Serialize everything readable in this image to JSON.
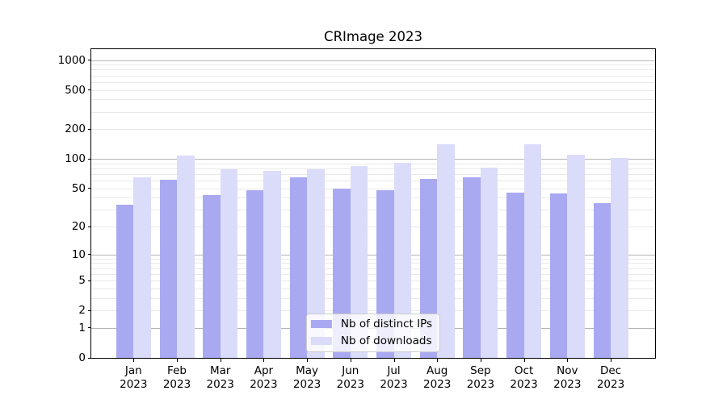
{
  "title": "CRImage 2023",
  "chart_data": {
    "type": "bar",
    "title": "CRImage 2023",
    "categories": [
      "Jan",
      "Feb",
      "Mar",
      "Apr",
      "May",
      "Jun",
      "Jul",
      "Aug",
      "Sep",
      "Oct",
      "Nov",
      "Dec"
    ],
    "x_tick_year": "2023",
    "series": [
      {
        "name": "Nb of distinct IPs",
        "color": "#a9a9f2",
        "values": [
          34,
          61,
          43,
          48,
          65,
          50,
          48,
          63,
          65,
          45,
          44,
          35
        ]
      },
      {
        "name": "Nb of downloads",
        "color": "#dbdbfa",
        "values": [
          65,
          108,
          79,
          76,
          79,
          85,
          91,
          140,
          81,
          140,
          110,
          102
        ]
      }
    ],
    "y_axis": {
      "scale": "log10(x+1)",
      "ticks": [
        0,
        1,
        2,
        5,
        10,
        20,
        50,
        100,
        200,
        500,
        1000
      ],
      "major_gridlines": [
        1,
        10,
        100,
        1000
      ],
      "ylim": [
        0,
        1288
      ],
      "grid": true
    },
    "xlabel": "",
    "ylabel": "",
    "legend": {
      "position": "lower center",
      "entries": [
        "Nb of distinct IPs",
        "Nb of downloads"
      ]
    },
    "colors": {
      "major_grid": "#b4b4b4",
      "minor_grid": "#e9e9e9",
      "spine": "#000000",
      "background": "#ffffff"
    }
  }
}
